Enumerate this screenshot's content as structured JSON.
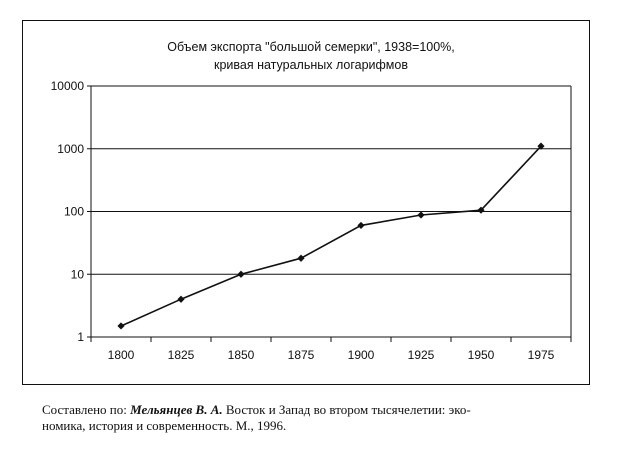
{
  "chart_data": {
    "type": "line",
    "title_lines": [
      "Объем экспорта \"большой семерки\", 1938=100%,",
      "кривая натуральных логарифмов"
    ],
    "xlabel": "",
    "ylabel": "",
    "categories": [
      "1800",
      "1825",
      "1850",
      "1875",
      "1900",
      "1925",
      "1950",
      "1975"
    ],
    "series": [
      {
        "values": [
          1.5,
          4,
          10,
          18,
          60,
          88,
          105,
          1100
        ]
      }
    ],
    "yscale": "log",
    "ylim": [
      1,
      10000
    ],
    "yticks": [
      "1",
      "10",
      "100",
      "1000",
      "10000"
    ],
    "grid": "horizontal",
    "legend": "none",
    "colors": {
      "line": "#111111",
      "marker": "#111111",
      "grid": "#111111"
    }
  },
  "source": {
    "prefix": "Составлено по: ",
    "author": "Мельянцев В. А.",
    "text_line1": " Восток и Запад во втором тысячелетии: эко-",
    "text_line2": "номика, история и современность. М., 1996."
  }
}
